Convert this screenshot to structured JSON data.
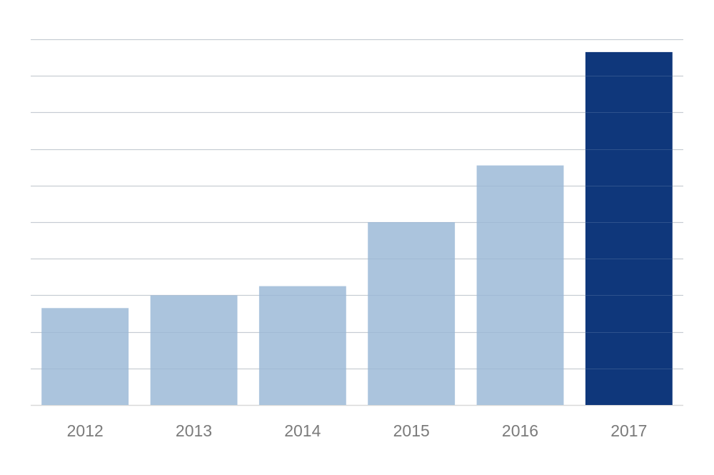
{
  "chart_data": {
    "type": "bar",
    "categories": [
      "2012",
      "2013",
      "2014",
      "2015",
      "2016",
      "2017"
    ],
    "values": [
      2.65,
      3.0,
      3.25,
      5.0,
      6.55,
      9.65
    ],
    "highlight_index": 5,
    "ylim": [
      0,
      10
    ],
    "grid": true,
    "colors": {
      "bar": "#a7c1db",
      "bar_highlight": "#0f377b",
      "grid": "#d9d9d9",
      "tick_label": "#7b7b7b"
    }
  }
}
